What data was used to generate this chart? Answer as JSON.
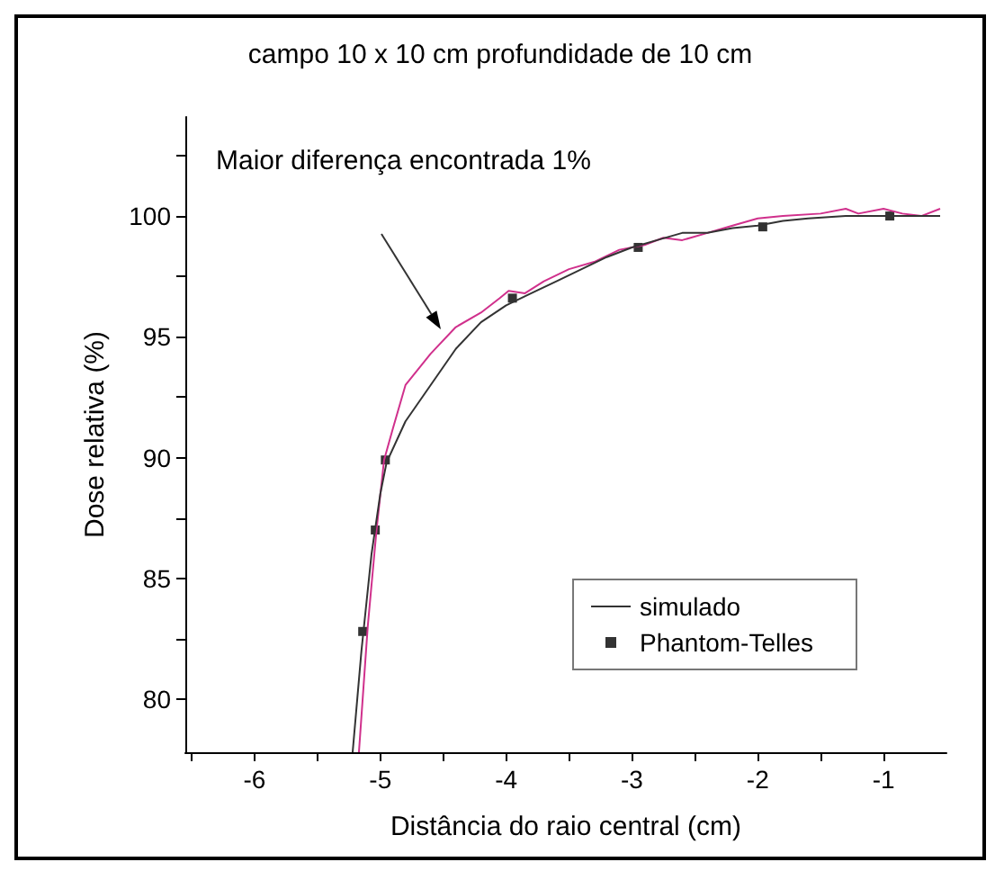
{
  "chart_data": {
    "type": "line",
    "title": "campo 10 x 10 cm profundidade de 10 cm",
    "xlabel": "Distância do raio central (cm)",
    "ylabel": "Dose relativa (%)",
    "xlim": [
      -6.55,
      -0.5
    ],
    "ylim": [
      77.8,
      104.1
    ],
    "xticks": [
      {
        "value": -6.5,
        "label": null
      },
      -6,
      {
        "value": -5.5,
        "label": null
      },
      -5,
      {
        "value": -4.5,
        "label": null
      },
      -4,
      {
        "value": -3.5,
        "label": null
      },
      -3,
      {
        "value": -2.5,
        "label": null
      },
      -2,
      {
        "value": -1.5,
        "label": null
      },
      -1
    ],
    "yticks": [
      80,
      {
        "value": 82.5,
        "label": null
      },
      85,
      {
        "value": 87.5,
        "label": null
      },
      90,
      {
        "value": 92.5,
        "label": null
      },
      95,
      {
        "value": 97.5,
        "label": null
      },
      100,
      {
        "value": 102.5,
        "label": null
      }
    ],
    "grid": false,
    "legend": "right",
    "annotations": [
      "Maior diferença encontrada 1%"
    ],
    "series": [
      {
        "color": "#d0308c",
        "marker": "none",
        "x": [
          -5.17,
          -5.1,
          -5.03,
          -4.97,
          -4.9,
          -4.8,
          -4.6,
          -4.4,
          -4.2,
          -4.05,
          -3.98,
          -3.85,
          -3.7,
          -3.5,
          -3.3,
          -3.1,
          -2.9,
          -2.75,
          -2.6,
          -2.4,
          -2.2,
          -2.0,
          -1.8,
          -1.5,
          -1.3,
          -1.2,
          -1.0,
          -0.85,
          -0.7,
          -0.55
        ],
        "values": [
          77.8,
          83,
          87,
          89.9,
          91.2,
          93,
          94.3,
          95.4,
          96.0,
          96.6,
          96.9,
          96.8,
          97.3,
          97.8,
          98.1,
          98.6,
          98.8,
          99.1,
          99.0,
          99.3,
          99.6,
          99.9,
          100.0,
          100.1,
          100.3,
          100.1,
          100.3,
          100.1,
          100.0,
          100.3
        ]
      },
      {
        "name": "simulado",
        "color": "#333333",
        "marker": "none",
        "x": [
          -5.22,
          -5.15,
          -5.07,
          -5.0,
          -4.95,
          -4.8,
          -4.6,
          -4.4,
          -4.2,
          -4.0,
          -3.8,
          -3.6,
          -3.4,
          -3.2,
          -3.0,
          -2.8,
          -2.6,
          -2.4,
          -2.2,
          -2.0,
          -1.8,
          -1.6,
          -1.3,
          -1.0,
          -0.8,
          -0.55
        ],
        "values": [
          77.8,
          82,
          86,
          88.5,
          89.8,
          91.5,
          93,
          94.5,
          95.6,
          96.3,
          96.8,
          97.3,
          97.8,
          98.3,
          98.7,
          99.0,
          99.3,
          99.3,
          99.5,
          99.6,
          99.8,
          99.9,
          100.0,
          100.0,
          100.0,
          100.0
        ]
      },
      {
        "type": "scatter",
        "name": "Phantom-Telles",
        "color": "#000000",
        "marker": "square",
        "x": [
          -5.14,
          -5.04,
          -4.96,
          -3.95,
          -2.95,
          -1.96,
          -0.95
        ],
        "values": [
          82.8,
          87.0,
          89.9,
          96.6,
          98.7,
          99.55,
          100.0
        ]
      }
    ]
  }
}
